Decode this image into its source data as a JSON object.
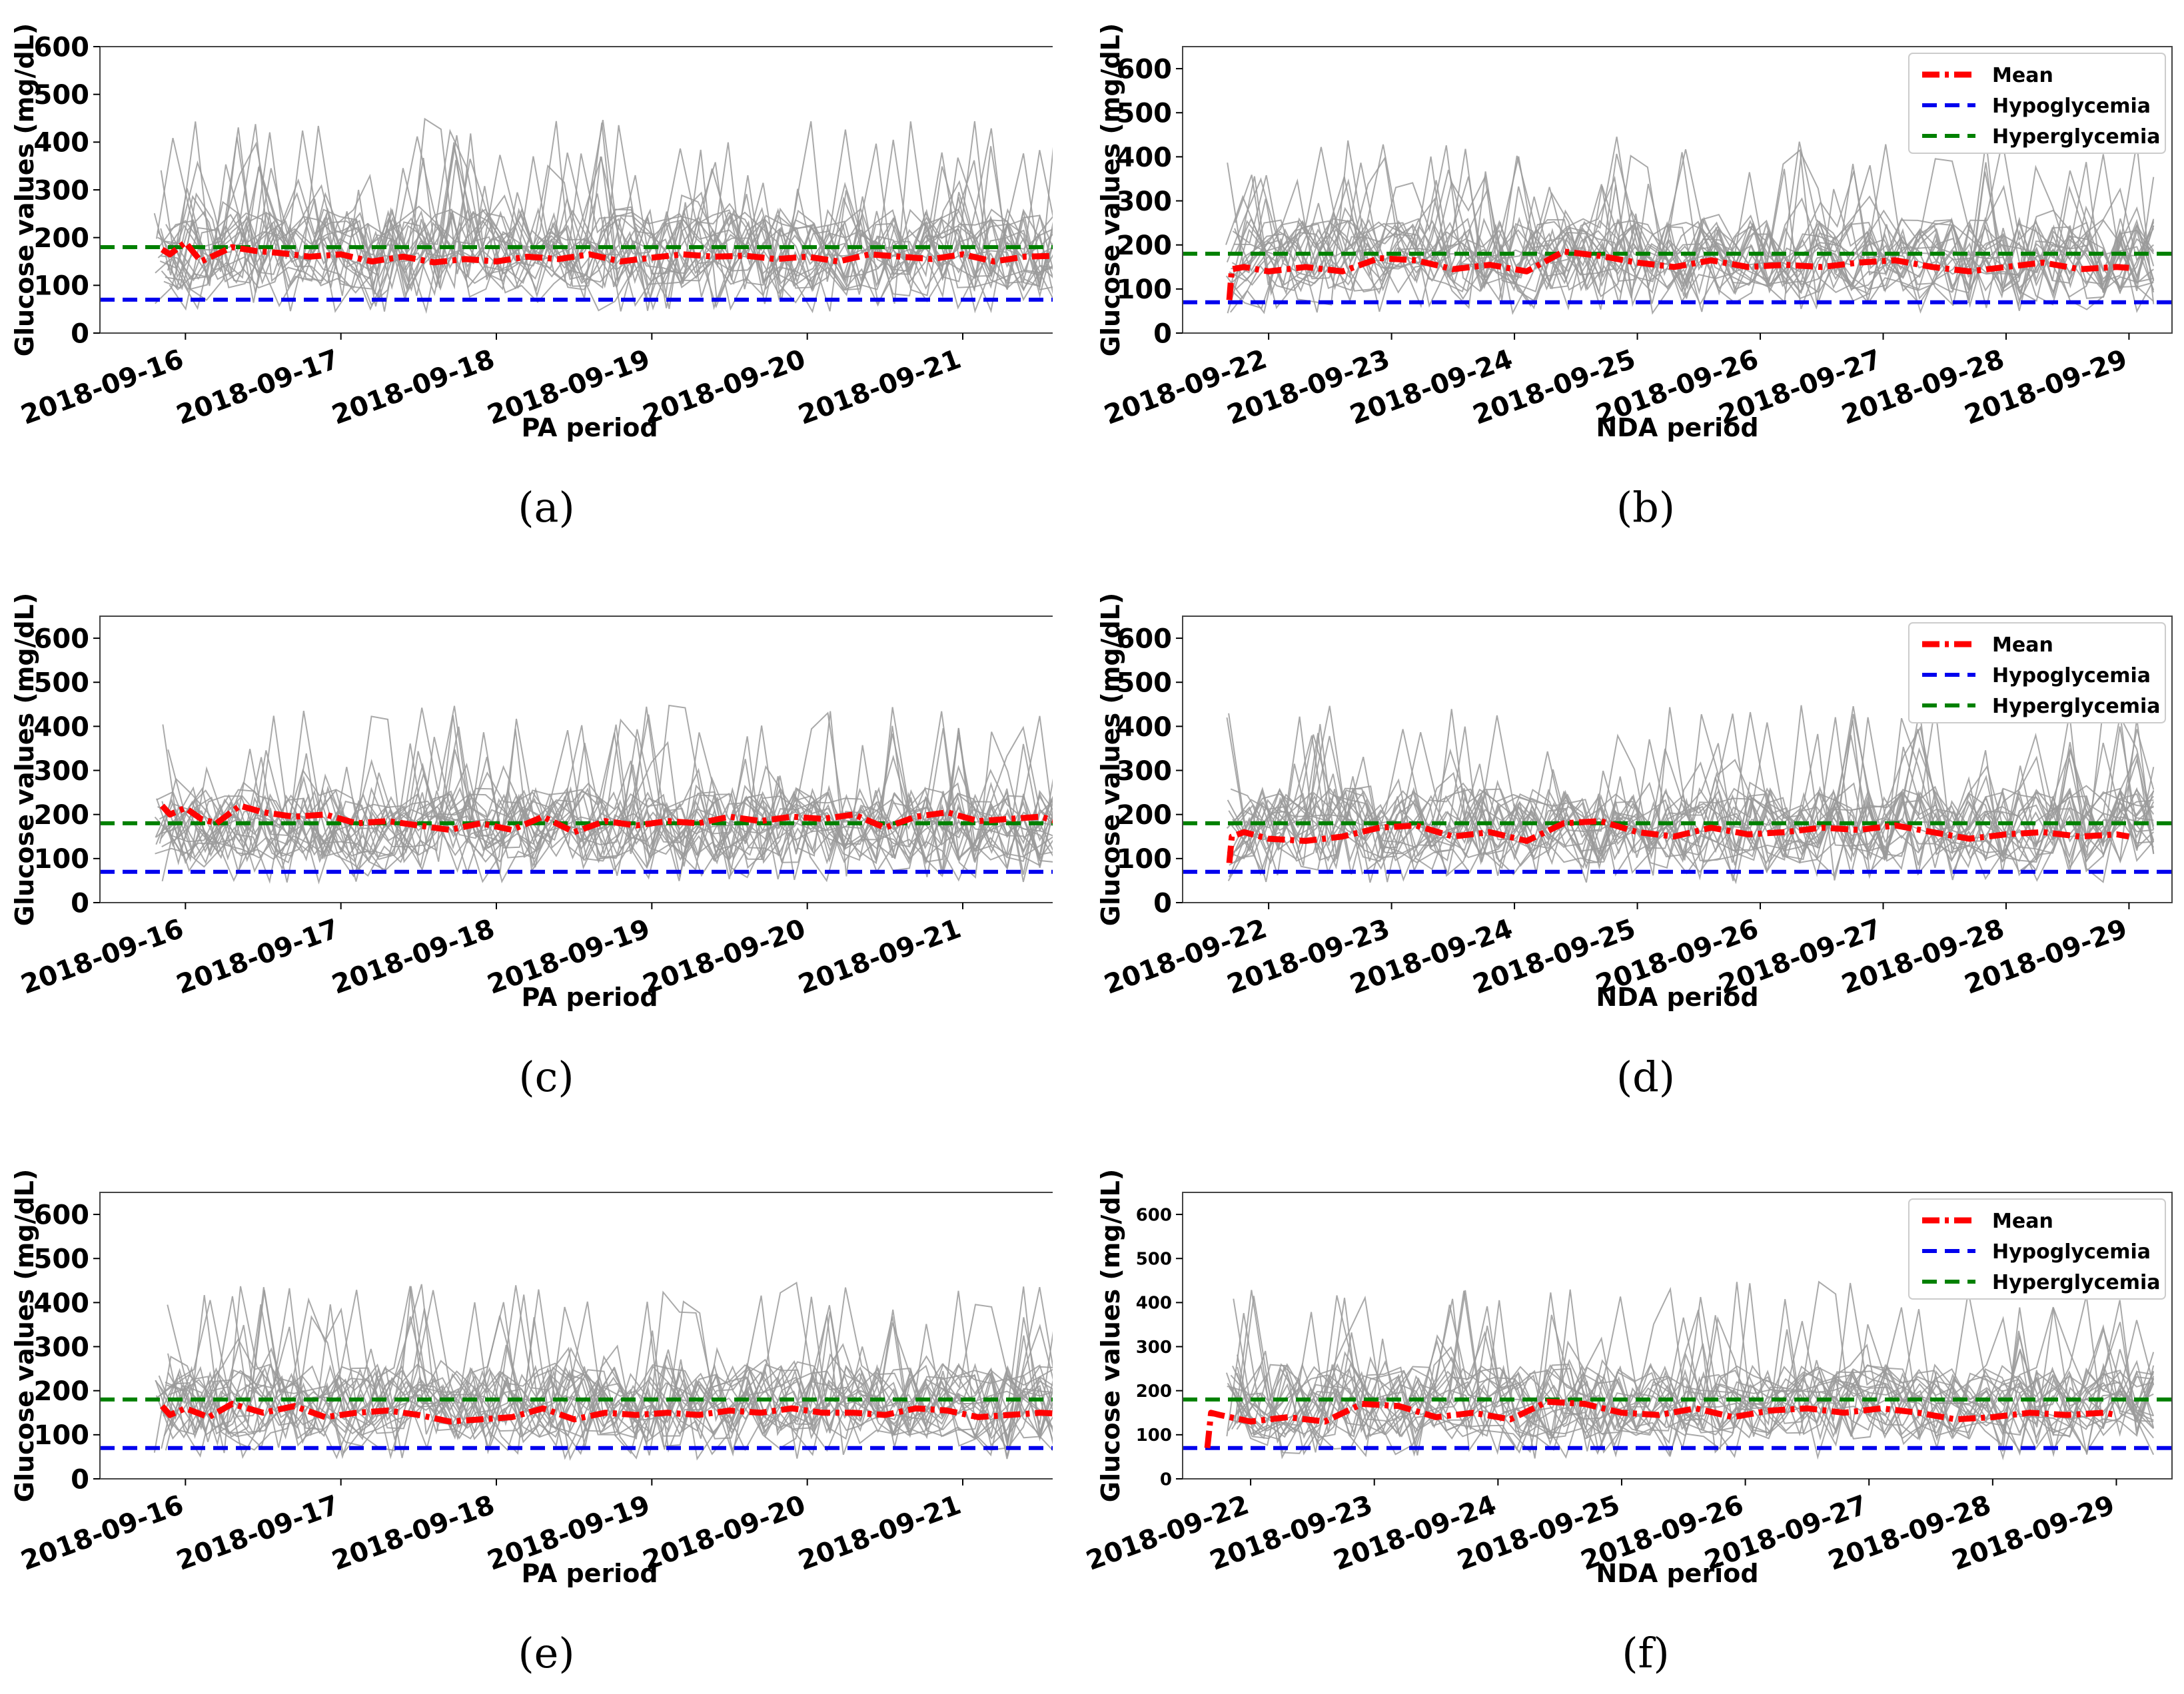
{
  "chart_data": [
    {
      "id": "a",
      "type": "line",
      "caption": "(a)",
      "xlabel": "PA period",
      "ylabel": "Glucose values (mg/dL)",
      "ylim": [
        0,
        600
      ],
      "yticks": [
        0,
        100,
        200,
        300,
        400,
        500,
        600
      ],
      "xticks": [
        "2018-09-16",
        "2018-09-17",
        "2018-09-18",
        "2018-09-19",
        "2018-09-20",
        "2018-09-21"
      ],
      "xdays": [
        0,
        1,
        2,
        3,
        4,
        5
      ],
      "xrange": [
        -0.55,
        5.75
      ],
      "legend": null,
      "series": [
        {
          "name": "Mean",
          "color": "#ff0000",
          "x": [
            -0.15,
            -0.1,
            0.0,
            0.1,
            0.2,
            0.3,
            0.45,
            0.6,
            0.8,
            1.0,
            1.2,
            1.4,
            1.6,
            1.8,
            2.0,
            2.2,
            2.4,
            2.6,
            2.8,
            3.0,
            3.2,
            3.4,
            3.6,
            3.8,
            4.0,
            4.2,
            4.4,
            4.6,
            4.8,
            5.0,
            5.2,
            5.4,
            5.6
          ],
          "y": [
            175,
            165,
            190,
            150,
            165,
            180,
            172,
            168,
            160,
            165,
            150,
            160,
            148,
            155,
            150,
            160,
            155,
            165,
            150,
            158,
            165,
            160,
            162,
            155,
            160,
            150,
            165,
            160,
            155,
            165,
            150,
            160,
            162
          ]
        },
        {
          "name": "Hypoglycemia",
          "color": "#0000ee",
          "value": 70
        },
        {
          "name": "Hyperglycemia",
          "color": "#008000",
          "value": 180
        }
      ]
    },
    {
      "id": "b",
      "type": "line",
      "caption": "(b)",
      "xlabel": "NDA period",
      "ylabel": "Glucose values (mg/dL)",
      "ylim": [
        0,
        650
      ],
      "yticks": [
        0,
        100,
        200,
        300,
        400,
        500,
        600
      ],
      "xticks": [
        "2018-09-22",
        "2018-09-23",
        "2018-09-24",
        "2018-09-25",
        "2018-09-26",
        "2018-09-27",
        "2018-09-28",
        "2018-09-29"
      ],
      "xdays": [
        0,
        1,
        2,
        3,
        4,
        5,
        6,
        7
      ],
      "xrange": [
        -0.7,
        7.35
      ],
      "legend": [
        "Mean",
        "Hypoglycemia",
        "Hyperglycemia"
      ],
      "series": [
        {
          "name": "Mean",
          "color": "#ff0000",
          "x": [
            -0.32,
            -0.3,
            -0.2,
            0.0,
            0.3,
            0.6,
            0.9,
            1.2,
            1.5,
            1.8,
            2.1,
            2.4,
            2.7,
            3.0,
            3.3,
            3.6,
            3.9,
            4.2,
            4.5,
            4.8,
            5.1,
            5.4,
            5.7,
            6.0,
            6.3,
            6.6,
            6.9,
            7.0
          ],
          "y": [
            75,
            145,
            150,
            140,
            150,
            140,
            170,
            165,
            145,
            155,
            140,
            185,
            175,
            160,
            150,
            165,
            150,
            155,
            150,
            160,
            165,
            150,
            140,
            150,
            160,
            145,
            150,
            148
          ]
        },
        {
          "name": "Hypoglycemia",
          "color": "#0000ee",
          "value": 70
        },
        {
          "name": "Hyperglycemia",
          "color": "#008000",
          "value": 180
        }
      ]
    },
    {
      "id": "c",
      "type": "line",
      "caption": "(c)",
      "xlabel": "PA period",
      "ylabel": "Glucose values (mg/dL)",
      "ylim": [
        0,
        650
      ],
      "yticks": [
        0,
        100,
        200,
        300,
        400,
        500,
        600
      ],
      "xticks": [
        "2018-09-16",
        "2018-09-17",
        "2018-09-18",
        "2018-09-19",
        "2018-09-20",
        "2018-09-21"
      ],
      "xdays": [
        0,
        1,
        2,
        3,
        4,
        5
      ],
      "xrange": [
        -0.55,
        5.75
      ],
      "legend": null,
      "series": [
        {
          "name": "Mean",
          "color": "#ff0000",
          "x": [
            -0.15,
            -0.1,
            0.0,
            0.1,
            0.2,
            0.35,
            0.5,
            0.7,
            0.9,
            1.1,
            1.3,
            1.5,
            1.7,
            1.9,
            2.1,
            2.3,
            2.5,
            2.7,
            2.9,
            3.1,
            3.3,
            3.5,
            3.7,
            3.9,
            4.1,
            4.3,
            4.5,
            4.7,
            4.9,
            5.1,
            5.3,
            5.5,
            5.6
          ],
          "y": [
            220,
            200,
            215,
            190,
            180,
            220,
            205,
            195,
            200,
            180,
            185,
            175,
            165,
            180,
            165,
            195,
            160,
            185,
            175,
            185,
            180,
            195,
            185,
            195,
            190,
            200,
            170,
            195,
            205,
            185,
            190,
            195,
            185
          ]
        },
        {
          "name": "Hypoglycemia",
          "color": "#0000ee",
          "value": 70
        },
        {
          "name": "Hyperglycemia",
          "color": "#008000",
          "value": 180
        }
      ]
    },
    {
      "id": "d",
      "type": "line",
      "caption": "(d)",
      "xlabel": "NDA period",
      "ylabel": "Glucose values (mg/dL)",
      "ylim": [
        0,
        650
      ],
      "yticks": [
        0,
        100,
        200,
        300,
        400,
        500,
        600
      ],
      "xticks": [
        "2018-09-22",
        "2018-09-23",
        "2018-09-24",
        "2018-09-25",
        "2018-09-26",
        "2018-09-27",
        "2018-09-28",
        "2018-09-29"
      ],
      "xdays": [
        0,
        1,
        2,
        3,
        4,
        5,
        6,
        7
      ],
      "xrange": [
        -0.7,
        7.35
      ],
      "legend": [
        "Mean",
        "Hypoglycemia",
        "Hyperglycemia"
      ],
      "series": [
        {
          "name": "Mean",
          "color": "#ff0000",
          "x": [
            -0.32,
            -0.3,
            -0.2,
            0.0,
            0.3,
            0.6,
            0.9,
            1.2,
            1.5,
            1.8,
            2.1,
            2.4,
            2.7,
            3.0,
            3.3,
            3.6,
            3.9,
            4.2,
            4.5,
            4.8,
            5.1,
            5.4,
            5.7,
            6.0,
            6.3,
            6.6,
            6.9,
            7.0
          ],
          "y": [
            90,
            150,
            160,
            145,
            140,
            150,
            170,
            175,
            150,
            160,
            140,
            180,
            185,
            160,
            150,
            170,
            155,
            160,
            170,
            165,
            175,
            160,
            145,
            155,
            160,
            150,
            155,
            150
          ]
        },
        {
          "name": "Hypoglycemia",
          "color": "#0000ee",
          "value": 70
        },
        {
          "name": "Hyperglycemia",
          "color": "#008000",
          "value": 180
        }
      ]
    },
    {
      "id": "e",
      "type": "line",
      "caption": "(e)",
      "xlabel": "PA period",
      "ylabel": "Glucose values (mg/dL)",
      "ylim": [
        0,
        650
      ],
      "yticks": [
        0,
        100,
        200,
        300,
        400,
        500,
        600
      ],
      "xticks": [
        "2018-09-16",
        "2018-09-17",
        "2018-09-18",
        "2018-09-19",
        "2018-09-20",
        "2018-09-21"
      ],
      "xdays": [
        0,
        1,
        2,
        3,
        4,
        5
      ],
      "xrange": [
        -0.55,
        5.75
      ],
      "legend": null,
      "series": [
        {
          "name": "Mean",
          "color": "#ff0000",
          "x": [
            -0.15,
            -0.1,
            0.0,
            0.15,
            0.3,
            0.5,
            0.7,
            0.9,
            1.1,
            1.3,
            1.5,
            1.7,
            1.9,
            2.1,
            2.3,
            2.5,
            2.7,
            2.9,
            3.1,
            3.3,
            3.5,
            3.7,
            3.9,
            4.1,
            4.3,
            4.5,
            4.7,
            4.9,
            5.1,
            5.3,
            5.5,
            5.6
          ],
          "y": [
            165,
            145,
            160,
            140,
            170,
            150,
            165,
            140,
            150,
            155,
            145,
            130,
            135,
            140,
            160,
            135,
            150,
            145,
            150,
            145,
            155,
            150,
            160,
            150,
            150,
            145,
            160,
            155,
            140,
            145,
            150,
            148
          ]
        },
        {
          "name": "Hypoglycemia",
          "color": "#0000ee",
          "value": 70
        },
        {
          "name": "Hyperglycemia",
          "color": "#008000",
          "value": 180
        }
      ]
    },
    {
      "id": "f",
      "type": "line",
      "caption": "(f)",
      "xlabel": "NDA period",
      "ylabel": "Glucose values (mg/dL)",
      "ylim": [
        0,
        650
      ],
      "yticks": [
        0,
        100,
        200,
        300,
        400,
        500,
        600
      ],
      "xticks": [
        "2018-09-22",
        "2018-09-23",
        "2018-09-24",
        "2018-09-25",
        "2018-09-26",
        "2018-09-27",
        "2018-09-28",
        "2018-09-29"
      ],
      "xdays": [
        0,
        1,
        2,
        3,
        4,
        5,
        6,
        7
      ],
      "xrange": [
        -0.55,
        7.45
      ],
      "legend": [
        "Mean",
        "Hypoglycemia",
        "Hyperglycemia"
      ],
      "series": [
        {
          "name": "Mean",
          "color": "#ff0000",
          "x": [
            -0.35,
            -0.32,
            -0.25,
            0.0,
            0.3,
            0.6,
            0.9,
            1.2,
            1.5,
            1.8,
            2.1,
            2.4,
            2.7,
            3.0,
            3.3,
            3.6,
            3.9,
            4.2,
            4.5,
            4.8,
            5.1,
            5.4,
            5.7,
            6.0,
            6.3,
            6.6,
            6.9,
            7.0
          ],
          "y": [
            70,
            150,
            145,
            130,
            140,
            130,
            170,
            165,
            140,
            150,
            135,
            175,
            170,
            150,
            145,
            160,
            140,
            155,
            160,
            150,
            160,
            150,
            135,
            140,
            150,
            145,
            150,
            145
          ]
        },
        {
          "name": "Hypoglycemia",
          "color": "#0000ee",
          "value": 70
        },
        {
          "name": "Hyperglycemia",
          "color": "#008000",
          "value": 180
        }
      ]
    }
  ]
}
